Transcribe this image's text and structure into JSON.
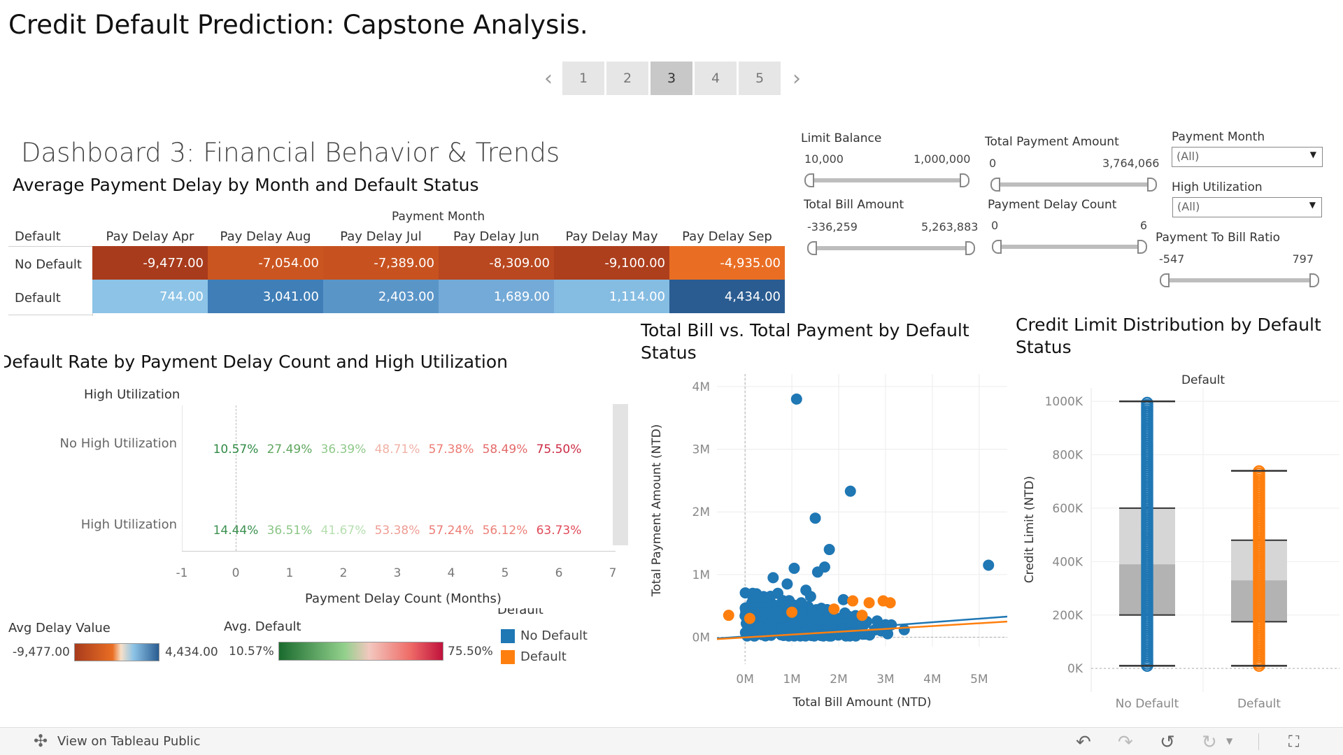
{
  "title": "Credit Default Prediction: Capstone Analysis.",
  "pagination": {
    "pages": [
      "1",
      "2",
      "3",
      "4",
      "5"
    ],
    "active_index": 2,
    "prev_icon": "chevron-left-icon",
    "next_icon": "chevron-right-icon"
  },
  "dashboard_title": "Dashboard 3: Financial Behavior & Trends",
  "heatmap": {
    "title": "Average Payment Delay by Month and Default Status",
    "group_header": "Payment Month",
    "row_header": "Default",
    "columns": [
      "Pay Delay Apr",
      "Pay Delay Aug",
      "Pay Delay Jul",
      "Pay Delay Jun",
      "Pay Delay May",
      "Pay Delay Sep"
    ],
    "rows": [
      {
        "label": "No Default",
        "values": [
          "-9,477.00",
          "-7,054.00",
          "-7,389.00",
          "-8,309.00",
          "-9,100.00",
          "-4,935.00"
        ],
        "colors": [
          "#a83b1c",
          "#cb5520",
          "#c75220",
          "#b9471f",
          "#ad3f1d",
          "#e96e24"
        ]
      },
      {
        "label": "Default",
        "values": [
          "744.00",
          "3,041.00",
          "2,403.00",
          "1,689.00",
          "1,114.00",
          "4,434.00"
        ],
        "colors": [
          "#8cc3e6",
          "#3f7eb7",
          "#5a95c8",
          "#74aad7",
          "#85bce2",
          "#2a5c91"
        ]
      }
    ]
  },
  "delay_rate": {
    "title": "Default Rate by Payment Delay Count and High Utilization",
    "col_header": "High Utilization",
    "x_axis_title": "Payment Delay Count (Months)",
    "x_ticks": [
      "-1",
      "0",
      "1",
      "2",
      "3",
      "4",
      "5",
      "6",
      "7"
    ],
    "rows": [
      {
        "label": "No High Utilization",
        "values": [
          "10.57%",
          "27.49%",
          "36.39%",
          "48.71%",
          "57.38%",
          "58.49%",
          "75.50%"
        ],
        "colors": [
          "#2f8a45",
          "#5fa65f",
          "#8fc98a",
          "#f0b2a8",
          "#ec7c75",
          "#e46a6a",
          "#cc2b44"
        ]
      },
      {
        "label": "High Utilization",
        "values": [
          "14.44%",
          "36.51%",
          "41.67%",
          "53.38%",
          "57.24%",
          "56.12%",
          "63.73%"
        ],
        "colors": [
          "#3b9150",
          "#8bc686",
          "#b6dfb0",
          "#ef9d95",
          "#ec7c75",
          "#ec8079",
          "#e04b5a"
        ]
      }
    ]
  },
  "filters": {
    "limit_balance": {
      "label": "Limit Balance",
      "min": "10,000",
      "max": "1,000,000"
    },
    "total_payment_amount": {
      "label": "Total Payment Amount",
      "min": "0",
      "max": "3,764,066"
    },
    "payment_month": {
      "label": "Payment Month",
      "value": "(All)"
    },
    "high_utilization": {
      "label": "High Utilization",
      "value": "(All)"
    },
    "total_bill_amount": {
      "label": "Total Bill Amount",
      "min": "-336,259",
      "max": "5,263,883"
    },
    "payment_delay_count": {
      "label": "Payment Delay Count",
      "min": "0",
      "max": "6"
    },
    "payment_to_bill_ratio": {
      "label": "Payment To Bill Ratio",
      "min": "-547",
      "max": "797"
    }
  },
  "scatter": {
    "title_line1": "Total Bill vs. Total Payment by Default",
    "title_line2": "Status",
    "x_axis_title": "Total Bill Amount (NTD)",
    "y_axis_title": "Total Payment Amount (NTD)",
    "x_ticks": [
      "0M",
      "1M",
      "2M",
      "3M",
      "4M",
      "5M"
    ],
    "y_ticks": [
      "0M",
      "1M",
      "2M",
      "3M",
      "4M"
    ]
  },
  "boxplot": {
    "title_line1": "Credit Limit Distribution by Default",
    "title_line2": "Status",
    "col_header": "Default",
    "y_axis_title": "Credit Limit (NTD)",
    "y_ticks": [
      "0K",
      "200K",
      "400K",
      "600K",
      "800K",
      "1000K"
    ],
    "categories": [
      "No Default",
      "Default"
    ]
  },
  "legends": {
    "avg_delay": {
      "title": "Avg Delay Value",
      "min": "-9,477.00",
      "max": "4,434.00"
    },
    "avg_default": {
      "title": "Avg. Default",
      "min": "10.57%",
      "max": "75.50%"
    },
    "default": {
      "title": "Default",
      "items": [
        "No Default",
        "Default"
      ],
      "colors": [
        "#1f77b4",
        "#ff7f0e"
      ]
    }
  },
  "chart_data": [
    {
      "type": "heatmap",
      "title": "Average Payment Delay by Month and Default Status",
      "xlabel": "Payment Month",
      "ylabel": "Default",
      "x": [
        "Pay Delay Apr",
        "Pay Delay Aug",
        "Pay Delay Jul",
        "Pay Delay Jun",
        "Pay Delay May",
        "Pay Delay Sep"
      ],
      "y": [
        "No Default",
        "Default"
      ],
      "values": [
        [
          -9477,
          -7054,
          -7389,
          -8309,
          -9100,
          -4935
        ],
        [
          744,
          3041,
          2403,
          1689,
          1114,
          4434
        ]
      ]
    },
    {
      "type": "table",
      "title": "Default Rate by Payment Delay Count and High Utilization",
      "xlabel": "Payment Delay Count (Months)",
      "x": [
        0,
        1,
        2,
        3,
        4,
        5,
        6
      ],
      "series": [
        {
          "name": "No High Utilization",
          "values": [
            10.57,
            27.49,
            36.39,
            48.71,
            57.38,
            58.49,
            75.5
          ]
        },
        {
          "name": "High Utilization",
          "values": [
            14.44,
            36.51,
            41.67,
            53.38,
            57.24,
            56.12,
            63.73
          ]
        }
      ],
      "xlim": [
        -1,
        7
      ]
    },
    {
      "type": "scatter",
      "title": "Total Bill vs. Total Payment by Default Status",
      "xlabel": "Total Bill Amount (NTD)",
      "ylabel": "Total Payment Amount (NTD)",
      "xlim": [
        -0.6,
        5.6
      ],
      "ylim": [
        -0.15,
        4.2
      ],
      "x_unit": "M",
      "y_unit": "M",
      "series": [
        {
          "name": "No Default",
          "color": "#1f77b4",
          "x": [
            1.1,
            2.25,
            1.5,
            1.8,
            1.7,
            1.55,
            1.05,
            0.6,
            0.9,
            1.3,
            1.4,
            0.7,
            5.2,
            1.2,
            0.85,
            1.65,
            2.1,
            0.5,
            0.95,
            1.75,
            2.6,
            3.0,
            3.4
          ],
          "y": [
            3.8,
            2.33,
            1.9,
            1.4,
            1.12,
            1.04,
            1.1,
            0.95,
            0.85,
            0.75,
            0.65,
            0.7,
            1.15,
            0.55,
            0.5,
            0.45,
            0.6,
            0.4,
            0.35,
            0.3,
            0.25,
            0.2,
            0.12
          ]
        },
        {
          "name": "Default",
          "color": "#ff7f0e",
          "x": [
            -0.35,
            2.3,
            2.65,
            2.95,
            3.1,
            0.1,
            1.0,
            1.9,
            2.5
          ],
          "y": [
            0.35,
            0.58,
            0.55,
            0.58,
            0.55,
            0.3,
            0.4,
            0.45,
            0.35
          ]
        }
      ],
      "trend_lines": [
        {
          "name": "No Default",
          "x": [
            -0.6,
            5.6
          ],
          "y": [
            -0.02,
            0.33
          ]
        },
        {
          "name": "Default",
          "x": [
            -0.6,
            5.6
          ],
          "y": [
            -0.03,
            0.25
          ]
        }
      ]
    },
    {
      "type": "box",
      "title": "Credit Limit Distribution by Default Status",
      "ylabel": "Credit Limit (NTD)",
      "categories": [
        "No Default",
        "Default"
      ],
      "y_unit": "K",
      "ylim": [
        -10,
        1050
      ],
      "series": [
        {
          "name": "No Default",
          "color": "#1f77b4",
          "min": 10,
          "q1": 200,
          "median": 390,
          "q3": 600,
          "max": 1000,
          "outlier_top": 1000
        },
        {
          "name": "Default",
          "color": "#ff7f0e",
          "min": 10,
          "q1": 175,
          "median": 330,
          "q3": 480,
          "max": 740
        }
      ]
    }
  ],
  "bottom_bar": {
    "view_link": "View on Tableau Public"
  }
}
